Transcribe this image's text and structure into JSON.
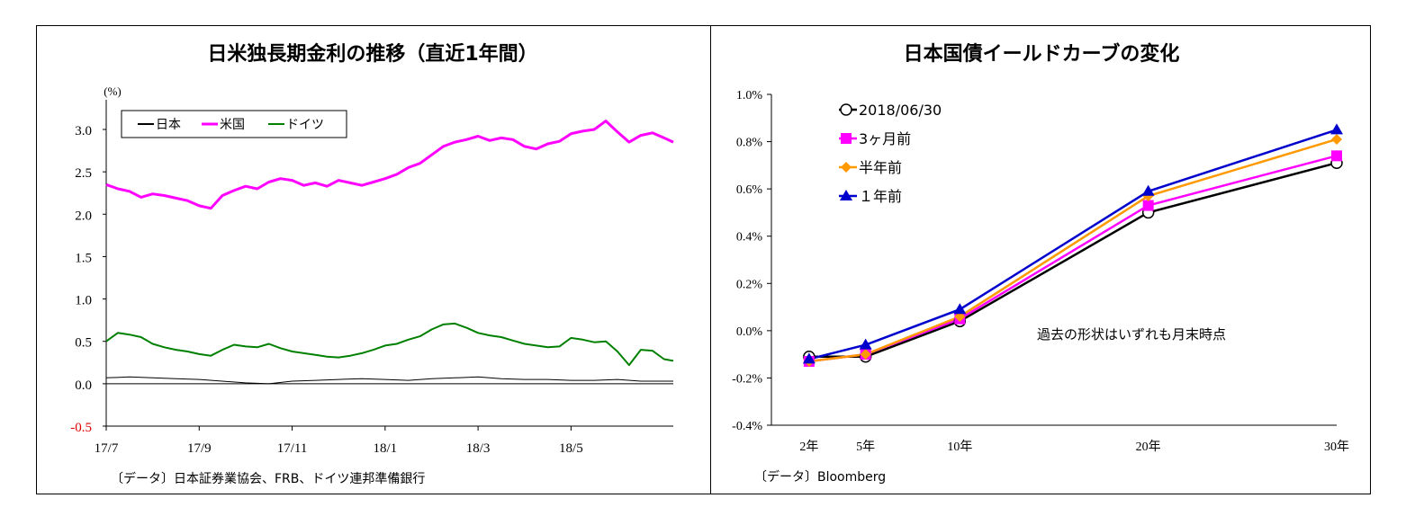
{
  "chart_data": [
    {
      "type": "line",
      "title": "日米独長期金利の推移（直近1年間）",
      "ylabel": "(%)",
      "ylim": [
        -0.5,
        3.2
      ],
      "yticks": [
        "3.0",
        "2.5",
        "2.0",
        "1.5",
        "1.0",
        "0.5",
        "0.0",
        "-0.5"
      ],
      "ytick_values": [
        3.0,
        2.5,
        2.0,
        1.5,
        1.0,
        0.5,
        0.0,
        -0.5
      ],
      "xticks": [
        "17/7",
        "17/9",
        "17/11",
        "18/1",
        "18/3",
        "18/5"
      ],
      "xlim_months": [
        0,
        12.2
      ],
      "legend_placement": "top-left",
      "source": "〔データ〕日本証券業協会、FRB、ドイツ連邦準備銀行",
      "series": [
        {
          "name": "日本",
          "color": "#000000",
          "x": [
            0,
            0.5,
            1,
            1.5,
            2,
            2.5,
            3,
            3.5,
            4,
            4.5,
            5,
            5.5,
            6,
            6.5,
            7,
            7.5,
            8,
            8.5,
            9,
            9.5,
            10,
            10.5,
            11,
            11.5,
            12,
            12.2
          ],
          "y": [
            0.07,
            0.08,
            0.07,
            0.06,
            0.05,
            0.03,
            0.01,
            0.0,
            0.03,
            0.04,
            0.05,
            0.06,
            0.05,
            0.04,
            0.06,
            0.07,
            0.08,
            0.06,
            0.05,
            0.05,
            0.04,
            0.04,
            0.05,
            0.03,
            0.03,
            0.03
          ]
        },
        {
          "name": "米国",
          "color": "#ff00ff",
          "x": [
            0,
            0.25,
            0.5,
            0.75,
            1,
            1.25,
            1.5,
            1.75,
            2,
            2.25,
            2.5,
            2.75,
            3,
            3.25,
            3.5,
            3.75,
            4,
            4.25,
            4.5,
            4.75,
            5,
            5.25,
            5.5,
            5.75,
            6,
            6.25,
            6.5,
            6.75,
            7,
            7.25,
            7.5,
            7.75,
            8,
            8.25,
            8.5,
            8.75,
            9,
            9.25,
            9.5,
            9.75,
            10,
            10.25,
            10.5,
            10.75,
            11,
            11.25,
            11.5,
            11.75,
            12,
            12.2
          ],
          "y": [
            2.35,
            2.3,
            2.27,
            2.2,
            2.24,
            2.22,
            2.19,
            2.16,
            2.1,
            2.07,
            2.22,
            2.28,
            2.33,
            2.3,
            2.38,
            2.42,
            2.4,
            2.34,
            2.37,
            2.33,
            2.4,
            2.37,
            2.34,
            2.38,
            2.42,
            2.47,
            2.55,
            2.6,
            2.7,
            2.8,
            2.85,
            2.88,
            2.92,
            2.87,
            2.9,
            2.88,
            2.8,
            2.77,
            2.83,
            2.86,
            2.95,
            2.98,
            3.0,
            3.1,
            2.97,
            2.85,
            2.93,
            2.96,
            2.9,
            2.85
          ]
        },
        {
          "name": "ドイツ",
          "color": "#008000",
          "x": [
            0,
            0.25,
            0.5,
            0.75,
            1,
            1.25,
            1.5,
            1.75,
            2,
            2.25,
            2.5,
            2.75,
            3,
            3.25,
            3.5,
            3.75,
            4,
            4.25,
            4.5,
            4.75,
            5,
            5.25,
            5.5,
            5.75,
            6,
            6.25,
            6.5,
            6.75,
            7,
            7.25,
            7.5,
            7.75,
            8,
            8.25,
            8.5,
            8.75,
            9,
            9.25,
            9.5,
            9.75,
            10,
            10.25,
            10.5,
            10.75,
            11,
            11.25,
            11.5,
            11.75,
            12,
            12.2
          ],
          "y": [
            0.5,
            0.6,
            0.58,
            0.55,
            0.47,
            0.43,
            0.4,
            0.38,
            0.35,
            0.33,
            0.4,
            0.46,
            0.44,
            0.43,
            0.47,
            0.42,
            0.38,
            0.36,
            0.34,
            0.32,
            0.31,
            0.33,
            0.36,
            0.4,
            0.45,
            0.47,
            0.52,
            0.56,
            0.64,
            0.7,
            0.71,
            0.66,
            0.6,
            0.57,
            0.55,
            0.51,
            0.47,
            0.45,
            0.43,
            0.44,
            0.54,
            0.52,
            0.49,
            0.5,
            0.38,
            0.22,
            0.4,
            0.39,
            0.29,
            0.27
          ]
        }
      ]
    },
    {
      "type": "line",
      "title": "日本国債イールドカーブの変化",
      "yticks": [
        "1.0%",
        "0.8%",
        "0.6%",
        "0.4%",
        "0.2%",
        "0.0%",
        "-0.2%",
        "-0.4%"
      ],
      "ytick_values": [
        1.0,
        0.8,
        0.6,
        0.4,
        0.2,
        0.0,
        -0.2,
        -0.4
      ],
      "ylim": [
        -0.4,
        1.0
      ],
      "categories": [
        "2年",
        "5年",
        "10年",
        "20年",
        "30年"
      ],
      "x_years": [
        2,
        5,
        10,
        20,
        30
      ],
      "xlim_years": [
        0,
        30
      ],
      "legend_placement": "top-left",
      "annotation": "過去の形状はいずれも月末時点",
      "source": "〔データ〕Bloomberg",
      "series": [
        {
          "name": "2018/06/30",
          "color": "#000000",
          "marker": "circle",
          "values": [
            -0.11,
            -0.11,
            0.04,
            0.5,
            0.71
          ]
        },
        {
          "name": "3ヶ月前",
          "color": "#ff00ff",
          "marker": "square",
          "values": [
            -0.13,
            -0.1,
            0.05,
            0.53,
            0.74
          ]
        },
        {
          "name": "半年前",
          "color": "#ff9900",
          "marker": "diamond",
          "values": [
            -0.13,
            -0.1,
            0.06,
            0.57,
            0.81
          ]
        },
        {
          "name": "１年前",
          "color": "#0000cc",
          "marker": "triangle",
          "values": [
            -0.12,
            -0.06,
            0.09,
            0.59,
            0.85
          ]
        }
      ]
    }
  ]
}
